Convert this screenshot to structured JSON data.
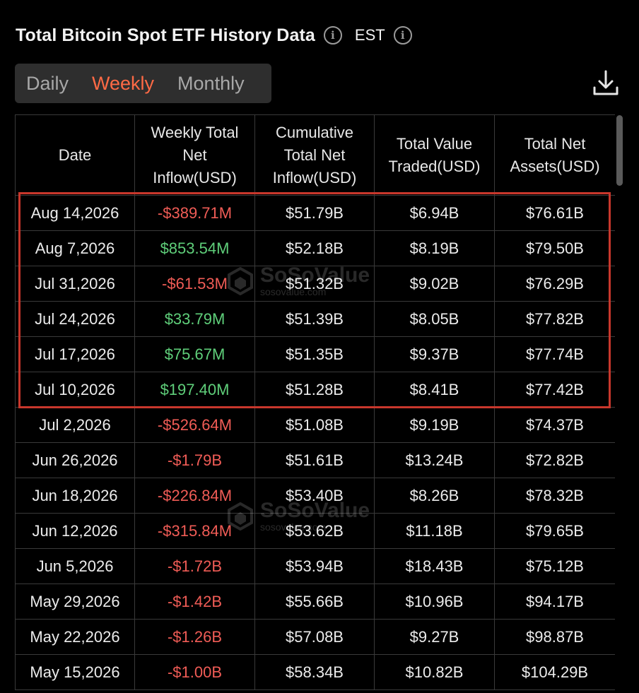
{
  "header": {
    "title": "Total Bitcoin Spot ETF History Data",
    "info_glyph": "i",
    "timezone": "EST"
  },
  "tabs": [
    {
      "label": "Daily",
      "active": false
    },
    {
      "label": "Weekly",
      "active": true
    },
    {
      "label": "Monthly",
      "active": false
    }
  ],
  "colors": {
    "accent": "#ff6a45",
    "negative": "#f05c56",
    "positive": "#5fcf7a",
    "highlight_border": "#c8372c",
    "background": "#000000"
  },
  "icons": {
    "info": "info-icon",
    "download": "download-icon"
  },
  "table": {
    "columns": [
      "Date",
      "Weekly Total Net Inflow(USD)",
      "Cumulative Total Net Inflow(USD)",
      "Total Value Traded(USD)",
      "Total Net Assets(USD)"
    ],
    "rows": [
      {
        "date": "Aug 14,2026",
        "weekly_net_inflow": "-$389.71M",
        "cumulative_net_inflow": "$51.79B",
        "value_traded": "$6.94B",
        "net_assets": "$76.61B"
      },
      {
        "date": "Aug 7,2026",
        "weekly_net_inflow": "$853.54M",
        "cumulative_net_inflow": "$52.18B",
        "value_traded": "$8.19B",
        "net_assets": "$79.50B"
      },
      {
        "date": "Jul 31,2026",
        "weekly_net_inflow": "-$61.53M",
        "cumulative_net_inflow": "$51.32B",
        "value_traded": "$9.02B",
        "net_assets": "$76.29B"
      },
      {
        "date": "Jul 24,2026",
        "weekly_net_inflow": "$33.79M",
        "cumulative_net_inflow": "$51.39B",
        "value_traded": "$8.05B",
        "net_assets": "$77.82B"
      },
      {
        "date": "Jul 17,2026",
        "weekly_net_inflow": "$75.67M",
        "cumulative_net_inflow": "$51.35B",
        "value_traded": "$9.37B",
        "net_assets": "$77.74B"
      },
      {
        "date": "Jul 10,2026",
        "weekly_net_inflow": "$197.40M",
        "cumulative_net_inflow": "$51.28B",
        "value_traded": "$8.41B",
        "net_assets": "$77.42B"
      },
      {
        "date": "Jul 2,2026",
        "weekly_net_inflow": "-$526.64M",
        "cumulative_net_inflow": "$51.08B",
        "value_traded": "$9.19B",
        "net_assets": "$74.37B"
      },
      {
        "date": "Jun 26,2026",
        "weekly_net_inflow": "-$1.79B",
        "cumulative_net_inflow": "$51.61B",
        "value_traded": "$13.24B",
        "net_assets": "$72.82B"
      },
      {
        "date": "Jun 18,2026",
        "weekly_net_inflow": "-$226.84M",
        "cumulative_net_inflow": "$53.40B",
        "value_traded": "$8.26B",
        "net_assets": "$78.32B"
      },
      {
        "date": "Jun 12,2026",
        "weekly_net_inflow": "-$315.84M",
        "cumulative_net_inflow": "$53.62B",
        "value_traded": "$11.18B",
        "net_assets": "$79.65B"
      },
      {
        "date": "Jun 5,2026",
        "weekly_net_inflow": "-$1.72B",
        "cumulative_net_inflow": "$53.94B",
        "value_traded": "$18.43B",
        "net_assets": "$75.12B"
      },
      {
        "date": "May 29,2026",
        "weekly_net_inflow": "-$1.42B",
        "cumulative_net_inflow": "$55.66B",
        "value_traded": "$10.96B",
        "net_assets": "$94.17B"
      },
      {
        "date": "May 22,2026",
        "weekly_net_inflow": "-$1.26B",
        "cumulative_net_inflow": "$57.08B",
        "value_traded": "$9.27B",
        "net_assets": "$98.87B"
      },
      {
        "date": "May 15,2026",
        "weekly_net_inflow": "-$1.00B",
        "cumulative_net_inflow": "$58.34B",
        "value_traded": "$10.82B",
        "net_assets": "$104.29B"
      }
    ]
  },
  "watermark": {
    "name": "SoSoValue",
    "url": "sosovalue.com"
  }
}
